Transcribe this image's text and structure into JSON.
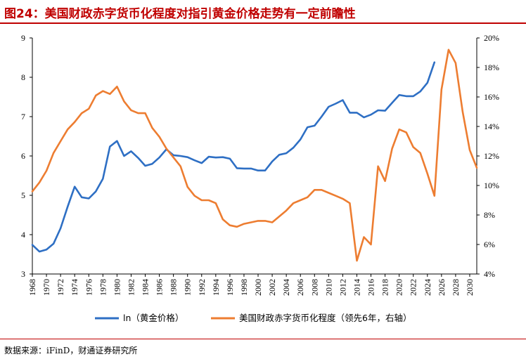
{
  "title": "图24：美国财政赤字货币化程度对指引黄金价格走势有一定前瞻性",
  "source": "数据来源：iFinD，财通证券研究所",
  "chart_data": {
    "type": "line",
    "title": "图24：美国财政赤字货币化程度对指引黄金价格走势有一定前瞻性",
    "x_ticks": [
      "1968",
      "1970",
      "1972",
      "1974",
      "1976",
      "1978",
      "1980",
      "1982",
      "1984",
      "1986",
      "1988",
      "1990",
      "1992",
      "1994",
      "1996",
      "1998",
      "2000",
      "2002",
      "2004",
      "2006",
      "2008",
      "2010",
      "2012",
      "2014",
      "2016",
      "2018",
      "2020",
      "2022",
      "2024",
      "2026",
      "2028",
      "2030"
    ],
    "xlim": [
      1968,
      2031
    ],
    "y_left": {
      "lim": [
        3,
        9
      ],
      "ticks": [
        "3",
        "4",
        "5",
        "6",
        "7",
        "8",
        "9"
      ]
    },
    "y_right": {
      "lim": [
        4,
        20
      ],
      "ticks": [
        "4%",
        "6%",
        "8%",
        "10%",
        "12%",
        "14%",
        "16%",
        "18%",
        "20%"
      ]
    },
    "legend_position": "bottom",
    "colors": {
      "ln_gold": "#2e6fc4",
      "deficit": "#ed7d31",
      "title": "#c00000"
    },
    "series": [
      {
        "name": "ln（黄金价格）",
        "axis": "left",
        "x": [
          1968,
          1969,
          1970,
          1971,
          1972,
          1973,
          1974,
          1975,
          1976,
          1977,
          1978,
          1979,
          1980,
          1981,
          1982,
          1983,
          1984,
          1985,
          1986,
          1987,
          1988,
          1989,
          1990,
          1991,
          1992,
          1993,
          1994,
          1995,
          1996,
          1997,
          1998,
          1999,
          2000,
          2001,
          2002,
          2003,
          2004,
          2005,
          2006,
          2007,
          2008,
          2009,
          2010,
          2011,
          2012,
          2013,
          2014,
          2015,
          2016,
          2017,
          2018,
          2019,
          2020,
          2021,
          2022,
          2023,
          2024,
          2025
        ],
        "values": [
          3.74,
          3.57,
          3.62,
          3.77,
          4.16,
          4.71,
          5.22,
          4.95,
          4.92,
          5.1,
          5.42,
          6.24,
          6.38,
          6.0,
          6.12,
          5.95,
          5.75,
          5.8,
          5.96,
          6.17,
          6.02,
          6.0,
          5.97,
          5.89,
          5.82,
          5.98,
          5.96,
          5.97,
          5.93,
          5.69,
          5.68,
          5.68,
          5.63,
          5.63,
          5.86,
          6.03,
          6.07,
          6.21,
          6.42,
          6.73,
          6.77,
          7.0,
          7.25,
          7.33,
          7.42,
          7.1,
          7.1,
          6.98,
          7.05,
          7.16,
          7.15,
          7.35,
          7.55,
          7.52,
          7.52,
          7.64,
          7.86,
          8.38
        ]
      },
      {
        "name": "美国财政赤字货币化程度（领先6年，右轴）",
        "axis": "right",
        "x": [
          1968,
          1969,
          1970,
          1971,
          1972,
          1973,
          1974,
          1975,
          1976,
          1977,
          1978,
          1979,
          1980,
          1981,
          1982,
          1983,
          1984,
          1985,
          1986,
          1987,
          1988,
          1989,
          1990,
          1991,
          1992,
          1993,
          1994,
          1995,
          1996,
          1997,
          1998,
          1999,
          2000,
          2001,
          2002,
          2003,
          2004,
          2005,
          2006,
          2007,
          2008,
          2009,
          2010,
          2011,
          2012,
          2013,
          2014,
          2015,
          2016,
          2017,
          2018,
          2019,
          2020,
          2021,
          2022,
          2023,
          2024,
          2025,
          2026,
          2027,
          2028,
          2029,
          2030,
          2031
        ],
        "values": [
          9.6,
          10.2,
          11.0,
          12.2,
          13.0,
          13.8,
          14.3,
          14.9,
          15.2,
          16.1,
          16.4,
          16.2,
          16.7,
          15.7,
          15.1,
          14.9,
          14.9,
          13.9,
          13.3,
          12.5,
          11.9,
          11.3,
          9.9,
          9.3,
          9.0,
          9.0,
          8.8,
          7.7,
          7.3,
          7.2,
          7.4,
          7.5,
          7.6,
          7.6,
          7.5,
          7.9,
          8.3,
          8.8,
          9.0,
          9.2,
          9.7,
          9.7,
          9.5,
          9.3,
          9.1,
          8.8,
          4.9,
          6.5,
          6.0,
          11.3,
          10.3,
          12.5,
          13.8,
          13.6,
          12.6,
          12.2,
          10.8,
          9.3,
          16.5,
          19.2,
          18.3,
          15.0,
          12.4,
          11.2
        ]
      }
    ]
  }
}
